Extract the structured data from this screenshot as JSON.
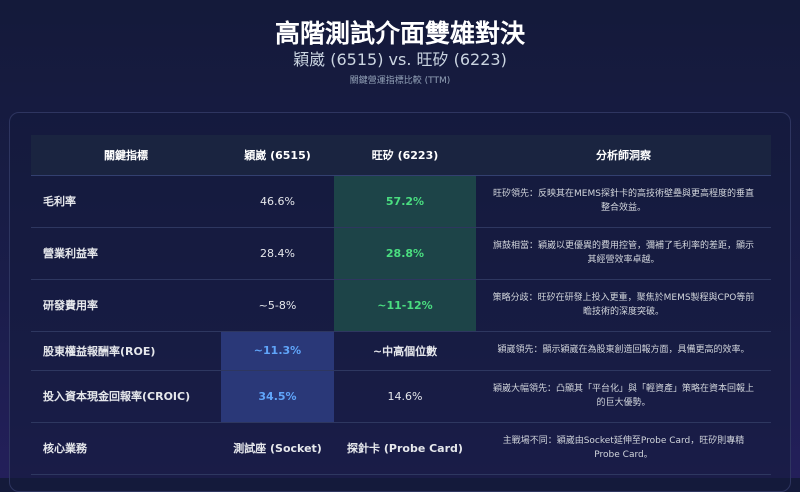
{
  "header": {
    "title": "高階測試介面雙雄對決",
    "subtitle": "穎崴 (6515) vs. 旺矽 (6223)",
    "caption": "關鍵營運指標比較 (TTM)"
  },
  "table": {
    "columns": [
      "關鍵指標",
      "穎崴 (6515)",
      "旺矽 (6223)",
      "分析師洞察"
    ],
    "rows": [
      {
        "metric": "毛利率",
        "a": "46.6%",
        "b": "57.2%",
        "insight": "旺矽領先：反映其在MEMS探針卡的高技術壁壘與更高程度的垂直整合效益。",
        "lead": "b"
      },
      {
        "metric": "營業利益率",
        "a": "28.4%",
        "b": "28.8%",
        "insight": "旗鼓相當：穎崴以更優異的費用控管，彌補了毛利率的差距，顯示其經營效率卓越。",
        "lead": "b"
      },
      {
        "metric": "研發費用率",
        "a": "~5-8%",
        "b": "~11-12%",
        "insight": "策略分歧：旺矽在研發上投入更重，聚焦於MEMS製程與CPO等前瞻技術的深度突破。",
        "lead": "b"
      },
      {
        "metric": "股東權益報酬率(ROE)",
        "a": "~11.3%",
        "b": "~中高個位數",
        "insight": "穎崴領先：顯示穎崴在為股東創造回報方面，具備更高的效率。",
        "lead": "a"
      },
      {
        "metric": "投入資本現金回報率(CROIC)",
        "a": "34.5%",
        "b": "14.6%",
        "insight": "穎崴大幅領先：凸顯其「平台化」與「輕資產」策略在資本回報上的巨大優勢。",
        "lead": "a"
      },
      {
        "metric": "核心業務",
        "a": "測試座 (Socket)",
        "b": "探針卡 (Probe Card)",
        "insight": "主戰場不同：穎崴由Socket延伸至Probe Card，旺矽則專精Probe Card。",
        "lead": ""
      }
    ]
  },
  "colors": {
    "green": "#4ade80",
    "blue": "#60a5fa"
  }
}
